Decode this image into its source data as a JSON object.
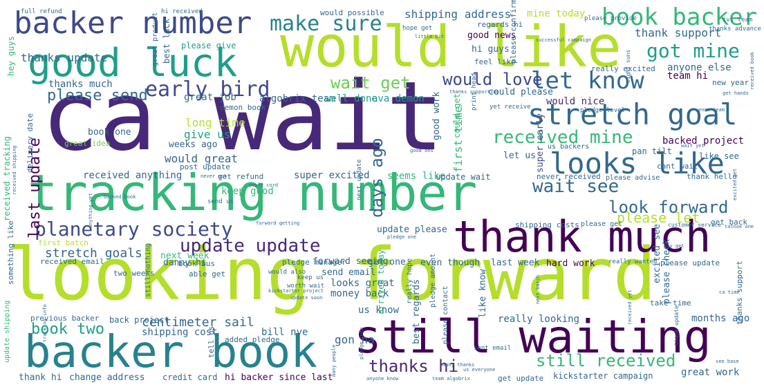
{
  "palette": {
    "purple": "#440154",
    "indigo": "#482878",
    "navy": "#3e4a89",
    "slate": "#31688e",
    "teal": "#26828e",
    "green": "#1f9e89",
    "mint": "#35b779",
    "lime": "#6ece58",
    "yellow": "#b5de2b"
  },
  "words": {
    "ca_wait": "ca wait",
    "looking_forward": "looking forward",
    "would_like": "would like",
    "tracking_number": "tracking number",
    "still_waiting": "still waiting",
    "backer_book": "backer book",
    "thank_much": "thank much",
    "good_luck": "good luck",
    "backer_number": "backer number",
    "stretch_goal": "stretch goal",
    "looks_like": "looks like",
    "let_know": "let know",
    "book_backer": "book backer",
    "got_mine": "got mine",
    "early_bird": "early bird",
    "make_sure": "make sure",
    "planetary_society": "planetary society",
    "update_update": "update update",
    "received_mine": "received mine",
    "wait_see": "wait see",
    "look_forward": "look forward",
    "would_love": "would love",
    "wait_get": "wait get",
    "please_send": "please send",
    "still_received": "still received",
    "thanks_hi": "thanks hi",
    "last_update": "last update",
    "days_ago": "days ago",
    "book_two": "book two",
    "stretch_goals": "stretch goals",
    "centimeter_sail": "centimeter sail",
    "shipping_address": "shipping address",
    "thanks_update": "thanks update",
    "thank_support": "thank support",
    "mine_today": "mine today",
    "please_let": "please let",
    "would_nice": "would nice",
    "thanks_much": "thanks much",
    "first_time": "first time",
    "would_great": "would great",
    "give_us": "give us",
    "long_time": "long time",
    "great_job": "great job",
    "algobrix_team": "algobrix team",
    "well_done": "well done",
    "ava_demon": "ava demon",
    "backed_project": "backed project",
    "super_early": "super early",
    "received_anything": "received anything",
    "super_excited": "super excited",
    "seems_like": "seems like",
    "anyone_else": "anyone else",
    "team_hi": "team hi",
    "new_year": "new year",
    "good_work": "good work",
    "could_get": "could get",
    "could_please": "could please",
    "good_news": "good news",
    "hi_guys": "hi guys",
    "feel_like": "feel like",
    "hey_guys": "hey guys",
    "please_give": "please give",
    "best_luck": "best luck",
    "book_one": "book one",
    "weeks_ago": "weeks ago",
    "great_idea": "great idea",
    "delivery_date": "delivery date",
    "post_update": "post update",
    "let_us": "let us",
    "update_please": "update please",
    "danny_hi": "danny hi",
    "pledge_manager": "pledge manager",
    "next_week": "next week",
    "book_bus": "book bus",
    "received_email": "received email",
    "two_weeks": "two weeks",
    "able_get": "able get",
    "looks_great": "looks great",
    "money_back": "money back",
    "us_know": "us know",
    "shipping_cost": "shipping cost",
    "bill_nye": "bill nye",
    "back_project": "back project",
    "previous_backer": "previous backer",
    "thank_hi": "thank hi",
    "change_address": "change address",
    "credit_card": "credit card",
    "hi_backer_since_last": "hi backer since last",
    "gon_na": "gon na",
    "best_regards": "best regards",
    "really_looking": "really looking",
    "hard_work": "hard work",
    "last_week": "last week",
    "even_though": "even though",
    "get_one": "get one",
    "send_email": "send email",
    "forward_seeing": "forward seeing",
    "months_ago": "months ago",
    "great_work": "great work",
    "kickstarter_campaign": "kickstarter campaign",
    "get_update": "get update",
    "please_update": "please update",
    "take_time": "take time",
    "excited_see": "excited see",
    "please_check": "please check",
    "like_know": "like know",
    "arrived_today": "arrived today",
    "keep_good": "keep good",
    "update_wait": "update wait",
    "cant_wait": "cant wait",
    "never_received": "never received",
    "thank_hello": "thank hello",
    "like_see": "like see",
    "pan_tilt": "pan tilt",
    "us_backers": "us backers",
    "get_back": "get back",
    "shipping_costs": "shipping costs",
    "please_get": "please get",
    "demon_book": "demon book",
    "received_tracking": "received tracking",
    "really_excited": "really excited",
    "regards_hi": "regards hi",
    "hope_get": "hope get",
    "please_confirm": "please confirm",
    "would_possible": "would possible",
    "hi_received": "hi received",
    "full_refund": "full refund",
    "tell_us": "tell us",
    "added_pledge": "added pledge",
    "next_update": "next update",
    "something_like": "something like",
    "received_shipping": "received shipping",
    "first_batch": "first batch",
    "get_refund": "get refund",
    "send_us": "send us",
    "please_advise": "please advise",
    "thanks_advance": "thanks advance",
    "ivi_team": "ivi team",
    "please_provide": "please provide",
    "yet_receive": "yet receive",
    "pledge_level": "pledge level",
    "print_head": "print head",
    "thanks_supporting": "thanks supporting",
    "get_hands": "get hands",
    "would_also": "would also",
    "keep_us": "keep us",
    "worth_wait": "worth wait",
    "really_hope": "really hope",
    "pledge_amount": "pledge amount",
    "please_contact": "please contact",
    "sent_email": "sent email",
    "really_wanted": "really wanted",
    "thanks_support": "thanks support",
    "customer_service": "customer service",
    "still_nothing": "still nothing",
    "tracking_info": "tracking info",
    "update_shipping": "update shipping",
    "great_product": "great product",
    "successful_campaign": "successful campaign",
    "little_bit": "little bit",
    "ca_time": "ca time",
    "see_base": "see base",
    "anyone_know": "anyone know",
    "team_algobrix": "team algobrix",
    "many_thanks": "many thanks",
    "us_everyone": "us everyone",
    "update_soon": "update soon",
    "kickstarter_project": "kickstarter project",
    "tatnoe_one": "tatnoe one",
    "pledge_one": "pledge one",
    "forward_getting": "forward getting",
    "enoo_team": "enoo team",
    "wait_yet": "wait yet",
    "eight_suns": "eight suns",
    "never_got": "never got",
    "backed_book": "backed book",
    "pledge_info": "pledge info",
    "power_cord": "power cord",
    "good_ons": "good ons",
    "received_book": "received book",
    "really_nice": "really nice",
    "pleasure_get": "pleasure get",
    "many_people": "many people",
    "excited_get": "excited get",
    "may_get": "may get",
    "next_batch": "next batch",
    "anything_yet": "anything yet",
    "thank_update": "thank update",
    "received_pledge": "received pledge",
    "kickstarter_page": "kickstarter page",
    "book_received": "book received",
    "received_yet": "received yet",
    "received_package": "received package",
    "get_email": "get email",
    "want_know": "want know",
    "ordered_kit": "ordered kit"
  }
}
